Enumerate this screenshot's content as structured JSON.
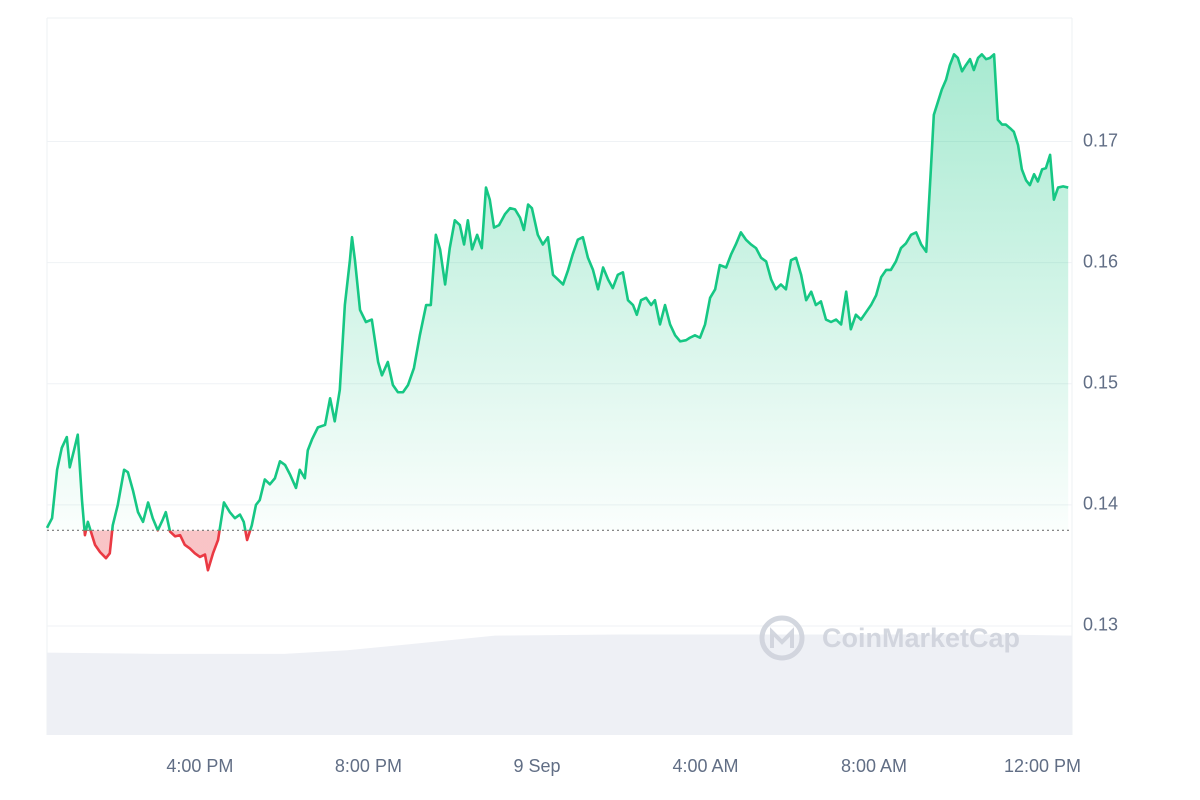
{
  "chart_data": {
    "type": "line",
    "x": [
      12.37,
      12.49,
      12.61,
      12.72,
      12.84,
      12.91,
      13.01,
      13.1,
      13.2,
      13.27,
      13.34,
      13.51,
      13.63,
      13.77,
      13.86,
      13.93,
      14.05,
      14.2,
      14.29,
      14.41,
      14.53,
      14.65,
      14.77,
      14.88,
      15.0,
      15.12,
      15.19,
      15.29,
      15.41,
      15.53,
      15.64,
      15.76,
      15.88,
      16.0,
      16.12,
      16.19,
      16.31,
      16.43,
      16.57,
      16.71,
      16.83,
      16.95,
      17.04,
      17.12,
      17.23,
      17.33,
      17.42,
      17.54,
      17.66,
      17.78,
      17.9,
      18.02,
      18.14,
      18.28,
      18.37,
      18.49,
      18.56,
      18.66,
      18.8,
      18.97,
      19.09,
      19.2,
      19.32,
      19.44,
      19.56,
      19.61,
      19.68,
      19.8,
      19.94,
      20.08,
      20.23,
      20.32,
      20.46,
      20.58,
      20.7,
      20.82,
      20.94,
      21.08,
      21.22,
      21.37,
      21.48,
      21.6,
      21.7,
      21.82,
      21.93,
      22.05,
      22.17,
      22.27,
      22.36,
      22.46,
      22.58,
      22.69,
      22.79,
      22.88,
      22.98,
      23.1,
      23.24,
      23.36,
      23.48,
      23.6,
      23.69,
      23.79,
      23.88,
      24.02,
      24.14,
      24.26,
      24.38,
      24.5,
      24.62,
      24.74,
      24.85,
      24.97,
      25.09,
      25.21,
      25.33,
      25.45,
      25.57,
      25.69,
      25.8,
      25.92,
      26.04,
      26.16,
      26.28,
      26.37,
      26.47,
      26.59,
      26.71,
      26.8,
      26.92,
      27.04,
      27.16,
      27.28,
      27.4,
      27.54,
      27.63,
      27.75,
      27.87,
      27.99,
      28.11,
      28.23,
      28.34,
      28.49,
      28.61,
      28.72,
      28.84,
      28.96,
      29.08,
      29.2,
      29.32,
      29.44,
      29.56,
      29.67,
      29.79,
      29.91,
      30.03,
      30.15,
      30.27,
      30.39,
      30.51,
      30.62,
      30.74,
      30.86,
      30.98,
      31.1,
      31.22,
      31.34,
      31.45,
      31.57,
      31.69,
      31.81,
      31.93,
      32.05,
      32.17,
      32.29,
      32.4,
      32.52,
      32.64,
      32.76,
      32.88,
      33.0,
      33.12,
      33.24,
      33.35,
      33.42,
      33.52,
      33.61,
      33.71,
      33.8,
      33.9,
      33.99,
      34.09,
      34.18,
      34.28,
      34.37,
      34.47,
      34.56,
      34.66,
      34.75,
      34.85,
      34.94,
      35.04,
      35.13,
      35.23,
      35.32,
      35.42,
      35.51,
      35.61,
      35.7,
      35.8,
      35.89,
      35.99,
      36.08,
      36.18,
      36.27,
      36.37,
      36.49,
      36.61
    ],
    "values": [
      0.1381,
      0.1389,
      0.1429,
      0.1447,
      0.1456,
      0.1431,
      0.1445,
      0.1458,
      0.1404,
      0.1375,
      0.1386,
      0.1367,
      0.1361,
      0.1356,
      0.136,
      0.1383,
      0.14,
      0.1429,
      0.1427,
      0.1412,
      0.1394,
      0.1386,
      0.1402,
      0.1389,
      0.1379,
      0.1388,
      0.1394,
      0.1378,
      0.1374,
      0.1375,
      0.1367,
      0.1364,
      0.136,
      0.1357,
      0.1359,
      0.1346,
      0.136,
      0.1371,
      0.1402,
      0.1394,
      0.1389,
      0.1392,
      0.1386,
      0.1371,
      0.1383,
      0.14,
      0.1404,
      0.1421,
      0.1417,
      0.1422,
      0.1436,
      0.1433,
      0.1425,
      0.1414,
      0.1429,
      0.1422,
      0.1445,
      0.1454,
      0.1464,
      0.1466,
      0.1488,
      0.1469,
      0.1495,
      0.1565,
      0.1602,
      0.1621,
      0.1602,
      0.1561,
      0.1551,
      0.1553,
      0.1518,
      0.1507,
      0.1518,
      0.1499,
      0.1493,
      0.1493,
      0.1499,
      0.1513,
      0.154,
      0.1565,
      0.1565,
      0.1623,
      0.1611,
      0.1582,
      0.1612,
      0.1635,
      0.1631,
      0.1615,
      0.1635,
      0.1611,
      0.1623,
      0.1612,
      0.1662,
      0.1652,
      0.1629,
      0.1631,
      0.164,
      0.1645,
      0.1644,
      0.1637,
      0.1627,
      0.1648,
      0.1645,
      0.1623,
      0.1615,
      0.1621,
      0.159,
      0.1586,
      0.1582,
      0.1594,
      0.1607,
      0.1619,
      0.1621,
      0.1604,
      0.1594,
      0.1578,
      0.1596,
      0.1586,
      0.1579,
      0.159,
      0.1592,
      0.1569,
      0.1565,
      0.1557,
      0.1569,
      0.1571,
      0.1565,
      0.1569,
      0.1549,
      0.1565,
      0.1549,
      0.154,
      0.1535,
      0.1536,
      0.1538,
      0.154,
      0.1538,
      0.1549,
      0.1571,
      0.1578,
      0.1598,
      0.1596,
      0.1607,
      0.1615,
      0.1625,
      0.1619,
      0.1615,
      0.1612,
      0.1604,
      0.1601,
      0.1586,
      0.1578,
      0.1582,
      0.1578,
      0.1602,
      0.1604,
      0.159,
      0.1569,
      0.1576,
      0.1565,
      0.1568,
      0.1553,
      0.1551,
      0.1553,
      0.1549,
      0.1576,
      0.1545,
      0.1557,
      0.1553,
      0.1559,
      0.1565,
      0.1573,
      0.1588,
      0.1594,
      0.1594,
      0.1601,
      0.1612,
      0.1616,
      0.1623,
      0.1625,
      0.1615,
      0.1609,
      0.1677,
      0.1722,
      0.1733,
      0.1743,
      0.1751,
      0.1763,
      0.1772,
      0.1769,
      0.1758,
      0.1763,
      0.1768,
      0.1759,
      0.1769,
      0.1772,
      0.1768,
      0.1769,
      0.1772,
      0.1718,
      0.1714,
      0.1714,
      0.1711,
      0.1708,
      0.1697,
      0.1677,
      0.1668,
      0.1664,
      0.1673,
      0.1667,
      0.1677,
      0.1678,
      0.1689,
      0.1652,
      0.1662,
      0.1663,
      0.1662
    ],
    "color": "#16c784",
    "down_color": "#ea3943",
    "reference": 0.1379,
    "volume": {
      "x": [
        12.37,
        15,
        18,
        19.5,
        21,
        23,
        26,
        29,
        32,
        35,
        36.7
      ],
      "values": [
        0.1278,
        0.1277,
        0.1277,
        0.128,
        0.1285,
        0.1292,
        0.1293,
        0.1293,
        0.1293,
        0.1293,
        0.1292
      ],
      "color": "#eef0f5"
    },
    "xlim": [
      12.37,
      36.7
    ],
    "ylim": [
      0.121,
      0.1802
    ],
    "xticks": [
      {
        "value": 16,
        "label": "4:00 PM"
      },
      {
        "value": 20,
        "label": "8:00 PM"
      },
      {
        "value": 24,
        "label": "9 Sep"
      },
      {
        "value": 28,
        "label": "4:00 AM"
      },
      {
        "value": 32,
        "label": "8:00 AM"
      },
      {
        "value": 36,
        "label": "12:00 PM"
      }
    ],
    "yticks": [
      0.13,
      0.14,
      0.15,
      0.16,
      0.17
    ],
    "grid": true,
    "watermark": "CoinMarketCap"
  }
}
